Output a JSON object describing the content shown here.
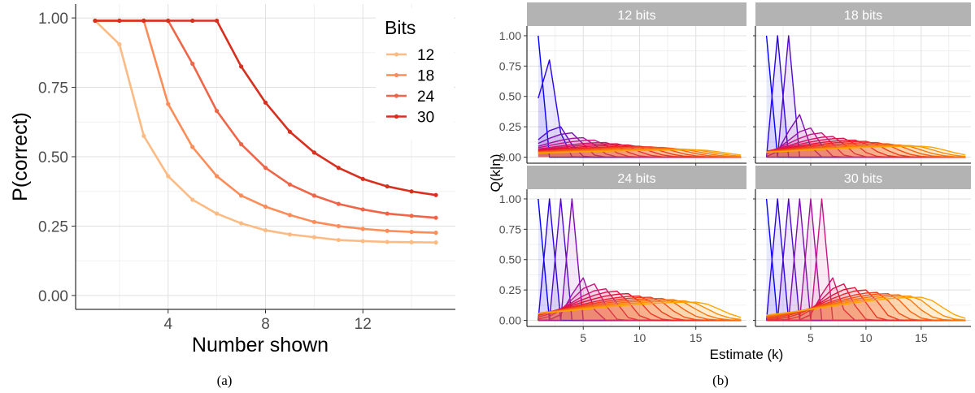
{
  "captions": {
    "a": "(a)",
    "b": "(b)"
  },
  "chart_data": [
    {
      "type": "line",
      "title": "",
      "xlabel": "Number shown",
      "ylabel": "P(correct)",
      "xlim": [
        0.2,
        15.8
      ],
      "ylim": [
        -0.05,
        1.05
      ],
      "xticks": [
        4,
        8,
        12
      ],
      "yticks": [
        0,
        0.25,
        0.5,
        0.75,
        1.0
      ],
      "ytick_labels": [
        "0.00",
        "0.25",
        "0.50",
        "0.75",
        "1.00"
      ],
      "grid": true,
      "legend": {
        "title": "Bits",
        "placement": "top-right"
      },
      "x": [
        1,
        2,
        3,
        4,
        5,
        6,
        7,
        8,
        9,
        10,
        11,
        12,
        13,
        14,
        15
      ],
      "series": [
        {
          "name": "12",
          "color": "#fdbb84",
          "values": [
            0.99,
            0.905,
            0.575,
            0.43,
            0.345,
            0.295,
            0.26,
            0.235,
            0.22,
            0.21,
            0.2,
            0.196,
            0.193,
            0.192,
            0.191
          ]
        },
        {
          "name": "18",
          "color": "#fc8d59",
          "values": [
            0.99,
            0.99,
            0.99,
            0.69,
            0.535,
            0.43,
            0.36,
            0.32,
            0.29,
            0.265,
            0.25,
            0.24,
            0.233,
            0.229,
            0.226
          ]
        },
        {
          "name": "24",
          "color": "#ef6548",
          "values": [
            0.99,
            0.99,
            0.99,
            0.99,
            0.835,
            0.665,
            0.545,
            0.46,
            0.4,
            0.36,
            0.33,
            0.31,
            0.295,
            0.287,
            0.28
          ]
        },
        {
          "name": "30",
          "color": "#d7301f",
          "values": [
            0.99,
            0.99,
            0.99,
            0.99,
            0.99,
            0.99,
            0.825,
            0.695,
            0.59,
            0.515,
            0.46,
            0.42,
            0.393,
            0.375,
            0.362
          ]
        }
      ]
    },
    {
      "type": "area",
      "xlabel": "Estimate (k)",
      "ylabel": "Q(k|n)",
      "xlim": [
        0,
        19.5
      ],
      "ylim": [
        -0.05,
        1.08
      ],
      "xticks": [
        5,
        10,
        15
      ],
      "yticks": [
        0,
        0.25,
        0.5,
        0.75,
        1.0
      ],
      "ytick_labels": [
        "0.00",
        "0.25",
        "0.50",
        "0.75",
        "1.00"
      ],
      "grid": true,
      "k_max": 19,
      "n_count": 15,
      "colors": {
        "start": "#0000ff",
        "mid": "#c71585",
        "red": "#e8112d",
        "end": "#ffa500"
      },
      "panels": [
        {
          "strip": "12 bits",
          "exact_n": 1,
          "peak_at_n2": 0.82,
          "spread_curve": [
            0.8,
            0.25,
            0.2,
            0.16,
            0.14,
            0.12,
            0.11,
            0.1,
            0.09,
            0.085,
            0.08,
            0.07,
            0.065
          ]
        },
        {
          "strip": "18 bits",
          "exact_n": 3,
          "peak_at_n4": 0.35,
          "spread_curve": [
            0.35,
            0.24,
            0.2,
            0.17,
            0.155,
            0.14,
            0.13,
            0.12,
            0.11,
            0.1,
            0.095,
            0.09
          ]
        },
        {
          "strip": "24 bits",
          "exact_n": 4,
          "peak_at_n5": 0.35,
          "spread_curve": [
            0.35,
            0.3,
            0.26,
            0.24,
            0.22,
            0.2,
            0.19,
            0.18,
            0.17,
            0.16,
            0.15
          ]
        },
        {
          "strip": "30 bits",
          "exact_n": 6,
          "peak_at_n7": 0.35,
          "spread_curve": [
            0.35,
            0.3,
            0.27,
            0.25,
            0.23,
            0.22,
            0.21,
            0.2,
            0.19
          ]
        }
      ]
    }
  ]
}
